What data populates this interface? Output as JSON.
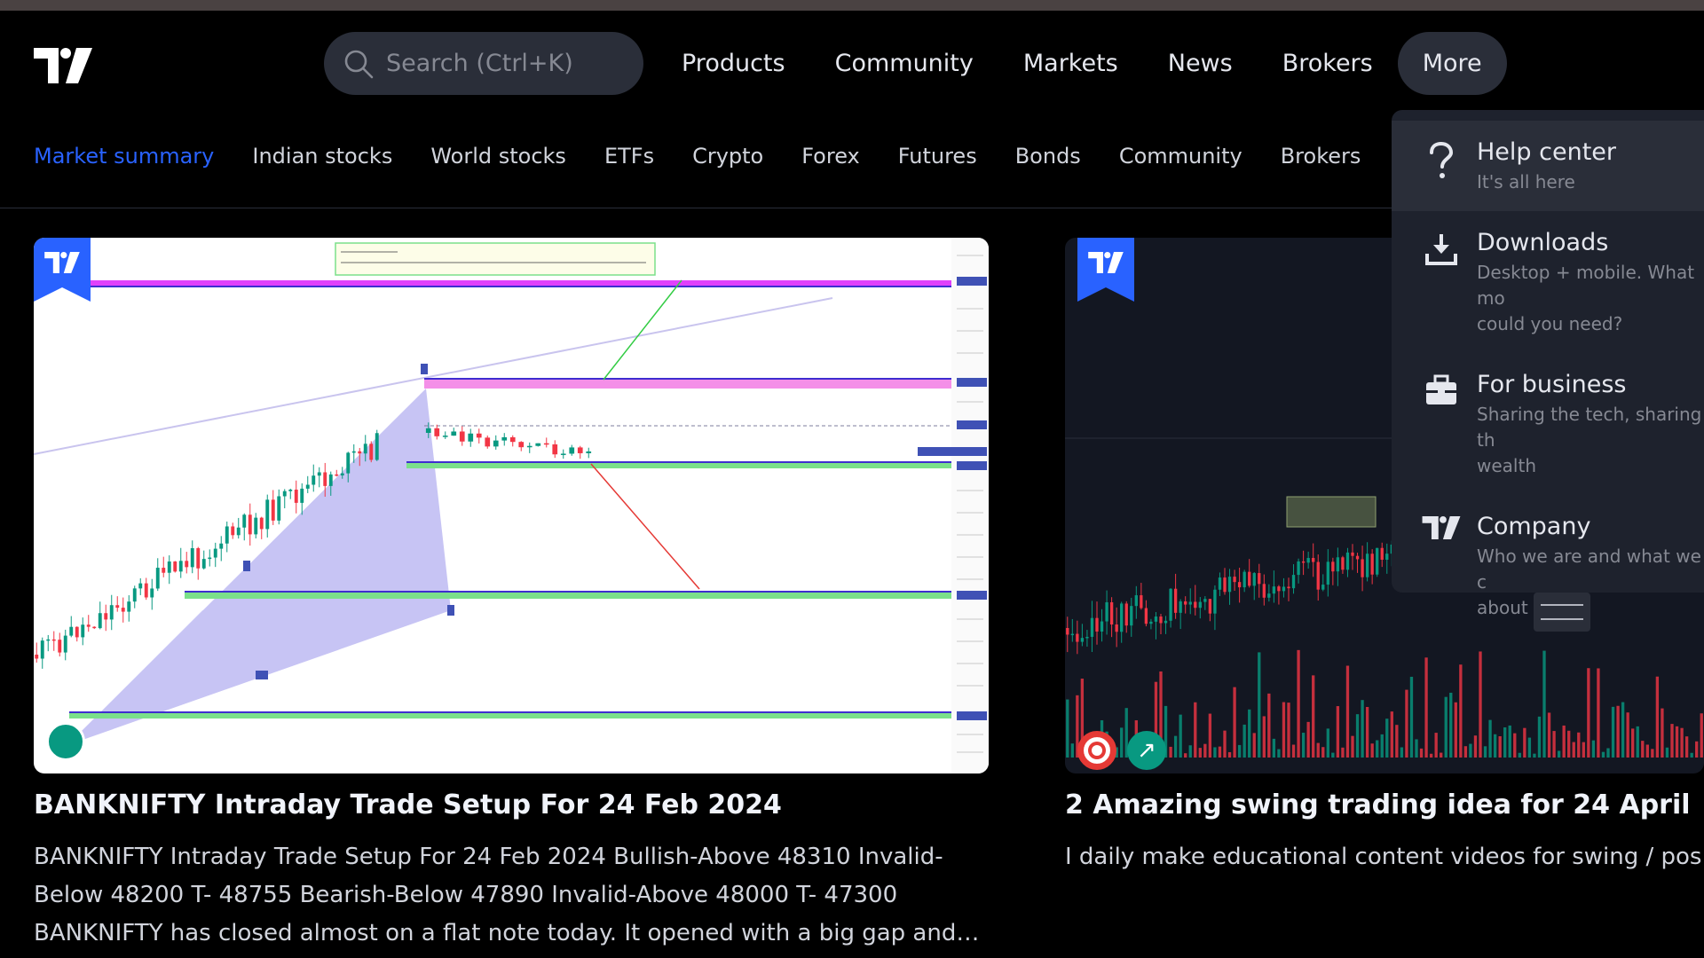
{
  "header": {
    "search_placeholder": "Search (Ctrl+K)",
    "nav": [
      {
        "label": "Products"
      },
      {
        "label": "Community"
      },
      {
        "label": "Markets"
      },
      {
        "label": "News"
      },
      {
        "label": "Brokers"
      },
      {
        "label": "More"
      }
    ]
  },
  "subnav": {
    "items": [
      {
        "label": "Market summary"
      },
      {
        "label": "Indian stocks"
      },
      {
        "label": "World stocks"
      },
      {
        "label": "ETFs"
      },
      {
        "label": "Crypto"
      },
      {
        "label": "Forex"
      },
      {
        "label": "Futures"
      },
      {
        "label": "Bonds"
      },
      {
        "label": "Community"
      },
      {
        "label": "Brokers"
      }
    ]
  },
  "cards": [
    {
      "title": "BANKNIFTY Intraday Trade Setup For 24 Feb 2024",
      "description": "BANKNIFTY Intraday Trade Setup For 24 Feb 2024 Bullish-Above 48310 Invalid-Below 48200 T- 48755 Bearish-Below 47890 Invalid-Above 48000 T- 47300 BANKNIFTY has closed almost on a flat note today. It opened with a big gap and…"
    },
    {
      "title": "2 Amazing swing trading idea for 24 April",
      "description": "I daily make educational content videos for swing / pos"
    }
  ],
  "more_menu": {
    "items": [
      {
        "icon": "question-icon",
        "label": "Help center",
        "sub": "It's all here"
      },
      {
        "icon": "download-icon",
        "label": "Downloads",
        "sub": "Desktop + mobile. What mo\ncould you need?"
      },
      {
        "icon": "briefcase-icon",
        "label": "For business",
        "sub": "Sharing the tech, sharing th\nwealth"
      },
      {
        "icon": "logo-icon",
        "label": "Company",
        "sub": "Who we are and what we c\nabout"
      }
    ]
  },
  "colors": {
    "accent": "#2962ff",
    "background": "#000000",
    "menu_bg": "#1e222d",
    "bull": "#089981",
    "bear": "#f23645"
  }
}
